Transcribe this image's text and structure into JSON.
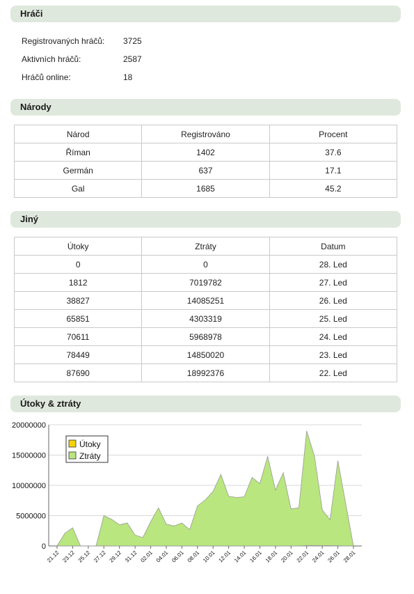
{
  "players": {
    "header": "Hráči",
    "rows": [
      {
        "label": "Registrovaných hráčů:",
        "value": "3725"
      },
      {
        "label": "Aktivních hráčů:",
        "value": "2587"
      },
      {
        "label": "Hráčů online:",
        "value": "18"
      }
    ]
  },
  "nations": {
    "header": "Národy",
    "columns": [
      "Národ",
      "Registrováno",
      "Procent"
    ],
    "rows": [
      [
        "Říman",
        "1402",
        "37.6"
      ],
      [
        "Germán",
        "637",
        "17.1"
      ],
      [
        "Gal",
        "1685",
        "45.2"
      ]
    ]
  },
  "other": {
    "header": "Jiný",
    "columns": [
      "Útoky",
      "Ztráty",
      "Datum"
    ],
    "rows": [
      [
        "0",
        "0",
        "28. Led"
      ],
      [
        "1812",
        "7019782",
        "27. Led"
      ],
      [
        "38827",
        "14085251",
        "26. Led"
      ],
      [
        "65851",
        "4303319",
        "25. Led"
      ],
      [
        "70611",
        "5968978",
        "24. Led"
      ],
      [
        "78449",
        "14850020",
        "23. Led"
      ],
      [
        "87690",
        "18992376",
        "22. Led"
      ]
    ]
  },
  "chart_header": "Útoky & ztráty",
  "chart_data": {
    "type": "area",
    "title": "",
    "xlabel": "",
    "ylabel": "",
    "y_tick_labels": [
      "0",
      "5000000",
      "10000000",
      "15000000",
      "20000000"
    ],
    "ylim": [
      0,
      20000000
    ],
    "x": [
      "21.12",
      "22.12",
      "23.12",
      "24.12",
      "25.12",
      "26.12",
      "27.12",
      "28.12",
      "29.12",
      "30.12",
      "31.12",
      "01.01",
      "02.01",
      "03.01",
      "04.01",
      "05.01",
      "06.01",
      "07.01",
      "08.01",
      "09.01",
      "10.01",
      "11.01",
      "12.01",
      "13.01",
      "14.01",
      "15.01",
      "16.01",
      "17.01",
      "18.01",
      "19.01",
      "20.01",
      "21.01",
      "22.01",
      "23.01",
      "24.01",
      "25.01",
      "26.01",
      "27.01",
      "28.01"
    ],
    "x_tick_labels": [
      "21.12",
      "23.12",
      "25.12",
      "27.12",
      "29.12",
      "31.12",
      "02.01",
      "04.01",
      "06.01",
      "08.01",
      "10.01",
      "12.01",
      "14.01",
      "16.01",
      "18.01",
      "20.01",
      "22.01",
      "24.01",
      "26.01",
      "28.01"
    ],
    "legend_position": "top-left",
    "grid": true,
    "series": [
      {
        "name": "Útoky",
        "color": "#f5d10a",
        "values": [
          0,
          0,
          0,
          0,
          0,
          0,
          0,
          0,
          0,
          0,
          0,
          0,
          0,
          0,
          0,
          0,
          0,
          0,
          0,
          0,
          0,
          0,
          0,
          0,
          0,
          0,
          0,
          0,
          0,
          0,
          0,
          0,
          87690,
          78449,
          70611,
          65851,
          38827,
          1812,
          0
        ]
      },
      {
        "name": "Ztráty",
        "color": "#9bdb4d",
        "fill": "#b9e67f",
        "values": [
          0,
          2100000,
          3000000,
          0,
          0,
          0,
          5000000,
          4400000,
          3500000,
          3800000,
          1800000,
          1400000,
          4000000,
          6300000,
          3600000,
          3300000,
          3800000,
          2700000,
          6600000,
          7600000,
          9000000,
          11800000,
          8200000,
          8000000,
          8100000,
          11300000,
          10300000,
          14800000,
          9200000,
          12100000,
          6100000,
          6300000,
          18992376,
          14850020,
          5968978,
          4303319,
          14085251,
          7019782,
          0
        ]
      }
    ]
  }
}
